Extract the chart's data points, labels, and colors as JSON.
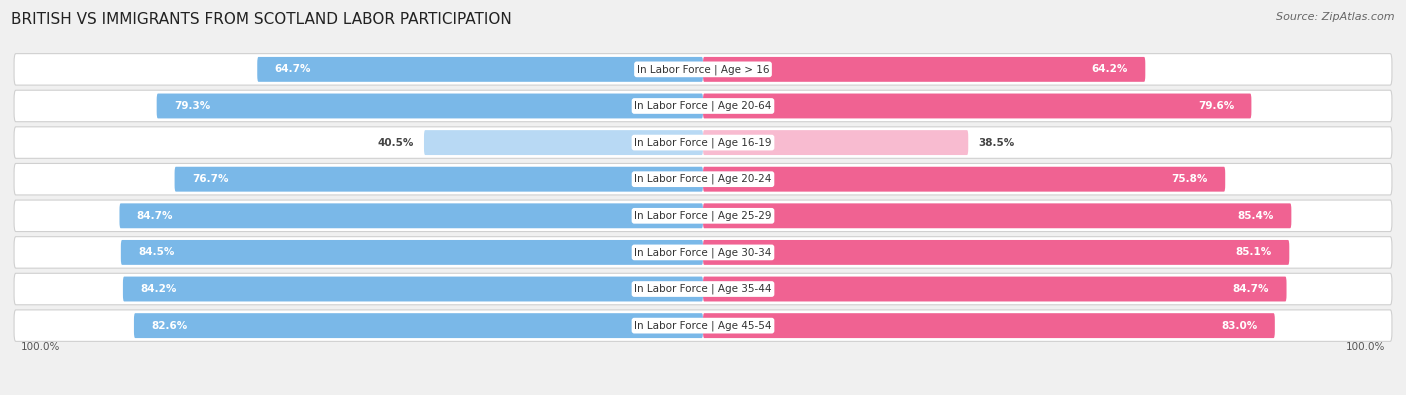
{
  "title": "BRITISH VS IMMIGRANTS FROM SCOTLAND LABOR PARTICIPATION",
  "source": "Source: ZipAtlas.com",
  "categories": [
    "In Labor Force | Age > 16",
    "In Labor Force | Age 20-64",
    "In Labor Force | Age 16-19",
    "In Labor Force | Age 20-24",
    "In Labor Force | Age 25-29",
    "In Labor Force | Age 30-34",
    "In Labor Force | Age 35-44",
    "In Labor Force | Age 45-54"
  ],
  "british_values": [
    64.7,
    79.3,
    40.5,
    76.7,
    84.7,
    84.5,
    84.2,
    82.6
  ],
  "immigrant_values": [
    64.2,
    79.6,
    38.5,
    75.8,
    85.4,
    85.1,
    84.7,
    83.0
  ],
  "british_color": "#7AB8E8",
  "british_color_light": "#B8D9F4",
  "immigrant_color": "#F06292",
  "immigrant_color_light": "#F8BBD0",
  "bar_height": 0.68,
  "background_color": "#f0f0f0",
  "row_bg_color": "#ffffff",
  "title_fontsize": 11,
  "label_fontsize": 7.5,
  "value_fontsize": 7.5,
  "legend_fontsize": 8.5,
  "axis_label_fontsize": 7.5,
  "max_val": 100.0,
  "threshold": 55
}
